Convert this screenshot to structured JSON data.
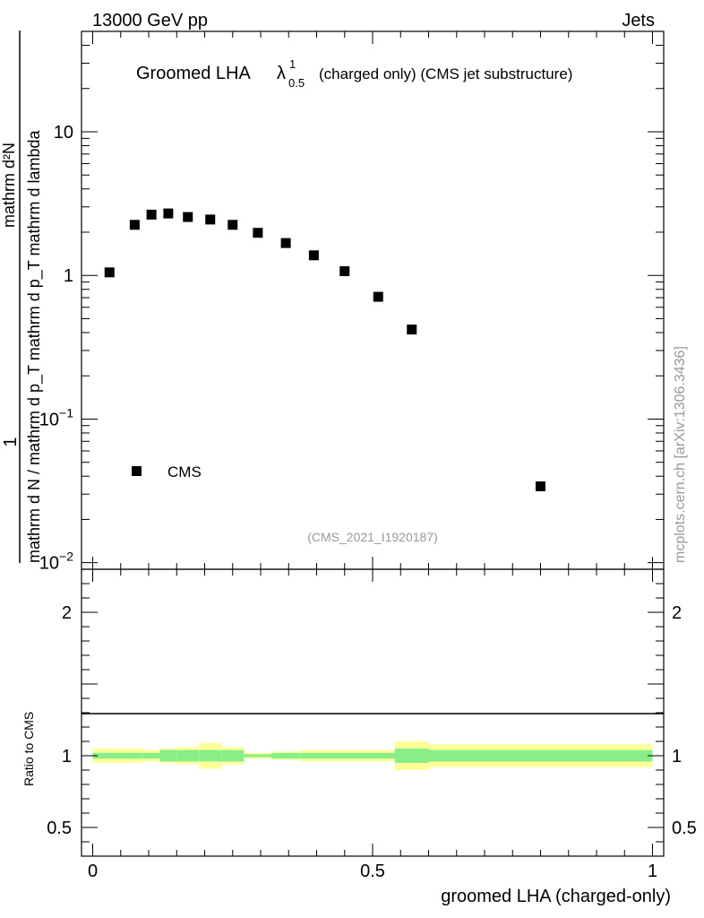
{
  "header": {
    "left": "13000 GeV pp",
    "right": "Jets"
  },
  "watermark": "mcplots.cern.ch [arXiv:1306.3436]",
  "chart_data": {
    "type": "scatter",
    "title_prefix": "Groomed LHA",
    "title_symbol": "λ",
    "title_sup": "1",
    "title_sub": "0.5",
    "title_suffix": "(charged only) (CMS jet substructure)",
    "analysis_id": "(CMS_2021_I1920187)",
    "xlabel": "groomed LHA (charged-only)",
    "ylabel": {
      "numerator": "1",
      "denominator": "mathrm d N / mathrm d p_T mathrm d p_T mathrm d lambda",
      "line1": "mathrm d²N",
      "line2": "mathrm d p",
      "line3": "mathrm d lambda"
    },
    "xlim": [
      -0.02,
      1.02
    ],
    "ylim": [
      0.009,
      50
    ],
    "yscale": "log",
    "xticks": [
      {
        "v": 0,
        "label": "0"
      },
      {
        "v": 0.5,
        "label": "0.5"
      },
      {
        "v": 1,
        "label": "1"
      }
    ],
    "yticks": [
      {
        "v": 0.01,
        "base": "10",
        "exp": "−2"
      },
      {
        "v": 0.1,
        "base": "10",
        "exp": "−1"
      },
      {
        "v": 1,
        "base": "1",
        "exp": ""
      },
      {
        "v": 10,
        "base": "10",
        "exp": ""
      }
    ],
    "series": [
      {
        "name": "CMS",
        "x": [
          0.03,
          0.075,
          0.105,
          0.135,
          0.17,
          0.21,
          0.25,
          0.295,
          0.345,
          0.395,
          0.45,
          0.51,
          0.57,
          0.8
        ],
        "y": [
          1.05,
          2.25,
          2.65,
          2.7,
          2.55,
          2.45,
          2.25,
          1.98,
          1.68,
          1.38,
          1.07,
          0.71,
          0.42,
          0.034
        ]
      }
    ],
    "legend": [
      {
        "label": "CMS",
        "marker": "square"
      }
    ],
    "ratio": {
      "ylabel": "Ratio to CMS",
      "ylim": [
        0.3,
        2.3
      ],
      "yticks": [
        {
          "v": 0.5,
          "label": "0.5"
        },
        {
          "v": 1,
          "label": "1"
        },
        {
          "v": 2,
          "label": "2"
        }
      ],
      "bins": [
        {
          "lo": 0.0,
          "hi": 0.09,
          "y_lo": 0.95,
          "y_hi": 1.05,
          "g_lo": 0.98,
          "g_hi": 1.02
        },
        {
          "lo": 0.09,
          "hi": 0.12,
          "y_lo": 0.96,
          "y_hi": 1.04,
          "g_lo": 0.98,
          "g_hi": 1.02
        },
        {
          "lo": 0.12,
          "hi": 0.15,
          "y_lo": 0.95,
          "y_hi": 1.05,
          "g_lo": 0.96,
          "g_hi": 1.04
        },
        {
          "lo": 0.15,
          "hi": 0.19,
          "y_lo": 0.94,
          "y_hi": 1.06,
          "g_lo": 0.96,
          "g_hi": 1.04
        },
        {
          "lo": 0.19,
          "hi": 0.23,
          "y_lo": 0.91,
          "y_hi": 1.09,
          "g_lo": 0.96,
          "g_hi": 1.04
        },
        {
          "lo": 0.23,
          "hi": 0.27,
          "y_lo": 0.94,
          "y_hi": 1.06,
          "g_lo": 0.96,
          "g_hi": 1.04
        },
        {
          "lo": 0.27,
          "hi": 0.32,
          "y_lo": 0.98,
          "y_hi": 1.02,
          "g_lo": 0.99,
          "g_hi": 1.01
        },
        {
          "lo": 0.32,
          "hi": 0.37,
          "y_lo": 0.97,
          "y_hi": 1.03,
          "g_lo": 0.98,
          "g_hi": 1.02
        },
        {
          "lo": 0.37,
          "hi": 0.54,
          "y_lo": 0.96,
          "y_hi": 1.04,
          "g_lo": 0.98,
          "g_hi": 1.02
        },
        {
          "lo": 0.54,
          "hi": 0.6,
          "y_lo": 0.9,
          "y_hi": 1.1,
          "g_lo": 0.95,
          "g_hi": 1.05
        },
        {
          "lo": 0.6,
          "hi": 1.0,
          "y_lo": 0.92,
          "y_hi": 1.08,
          "g_lo": 0.96,
          "g_hi": 1.04
        }
      ]
    }
  },
  "colors": {
    "yellow_band": "#ffff99",
    "green_band": "#88ee88",
    "marker": "#000000",
    "frame": "#000000",
    "grey_text": "#999999"
  }
}
